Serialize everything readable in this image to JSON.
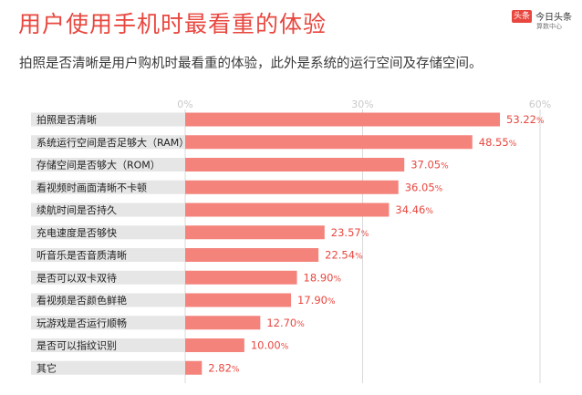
{
  "title": "用户使用手机时最看重的体验",
  "subtitle": "拍照是否清晰是用户购机时最看重的体验，此外是系统的运行空间及存储空间。",
  "logo": {
    "badge": "头条",
    "name": "今日头条",
    "sub": "算数中心"
  },
  "chart_data": {
    "type": "bar",
    "orientation": "horizontal",
    "categories": [
      "拍照是否清晰",
      "系统运行空间是否足够大（RAM）",
      "存储空间是否够大（ROM）",
      "看视频时画面清晰不卡顿",
      "续航时间是否持久",
      "充电速度是否够快",
      "听音乐是否音质清晰",
      "是否可以双卡双待",
      "看视频是否颜色鲜艳",
      "玩游戏是否运行顺畅",
      "是否可以指纹识别",
      "其它"
    ],
    "values": [
      53.22,
      48.55,
      37.05,
      36.05,
      34.46,
      23.57,
      22.54,
      18.9,
      17.9,
      12.7,
      10.0,
      2.82
    ],
    "value_labels": [
      "53.22",
      "48.55",
      "37.05",
      "36.05",
      "34.46",
      "23.57",
      "22.54",
      "18.90",
      "17.90",
      "12.70",
      "10.00",
      "2.82"
    ],
    "value_unit": "%",
    "xticks": [
      {
        "value": 0,
        "label": "0%"
      },
      {
        "value": 30,
        "label": "30%"
      },
      {
        "value": 60,
        "label": "60%"
      }
    ],
    "xlim": [
      0,
      60
    ],
    "grid": true,
    "colors": {
      "bar": "#f3837b",
      "label_band": "#e6e6e6",
      "value": "#e8473f",
      "grid": "#d9d9d9",
      "tick": "#c9c9c9"
    }
  }
}
